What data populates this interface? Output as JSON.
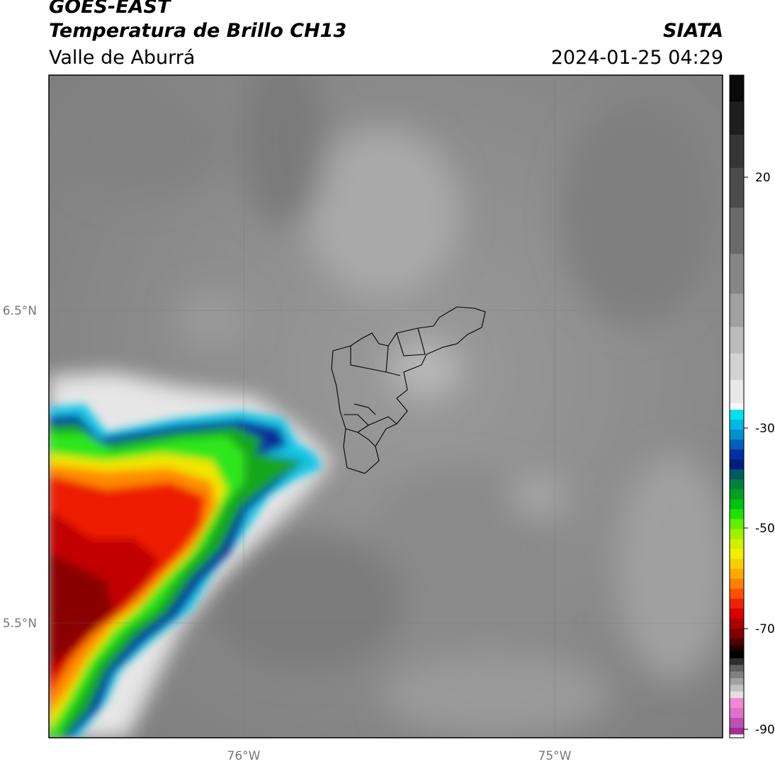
{
  "header": {
    "line1": "GOES-EAST",
    "line2": "Temperatura de Brillo CH13",
    "line3": "Valle de Aburrá",
    "brand": "SIATA",
    "datetime": "2024-01-25 04:29"
  },
  "map": {
    "lon_ticks": [
      "76°W",
      "75°W"
    ],
    "lat_ticks": [
      "6.5°N",
      "5.5°N"
    ]
  },
  "colorbar": {
    "ticks": [
      "20",
      "-30",
      "-50",
      "-70",
      "-90"
    ]
  },
  "colors": {
    "background_gray": "#8f8f8f",
    "cold_red": "#e00000",
    "green": "#29e000",
    "blue": "#1a3fc0",
    "cyan": "#1ad0e8"
  }
}
